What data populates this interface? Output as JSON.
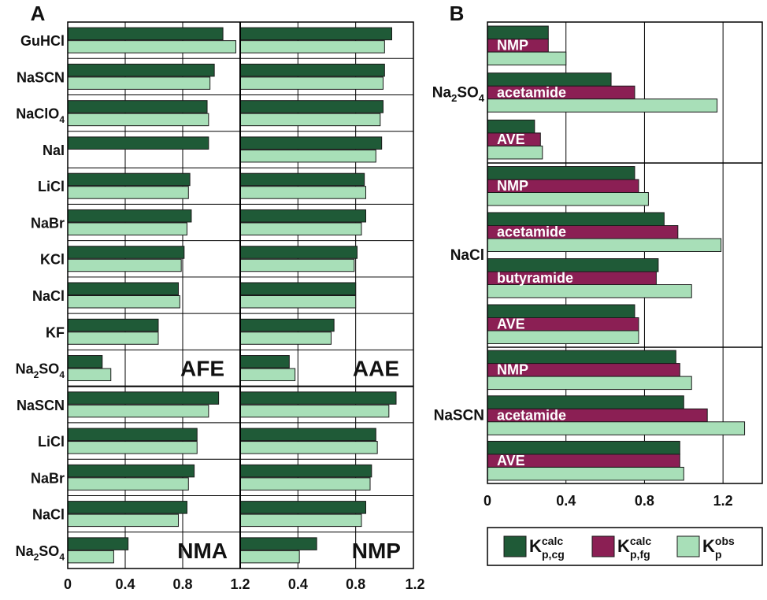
{
  "colors": {
    "calc_cg": "#1f5a37",
    "calc_fg": "#8b1f54",
    "obs": "#a8dfb8",
    "bar_outline": "#1a1a1a",
    "grid": "#000000"
  },
  "panel_labels": {
    "a": "A",
    "b": "B"
  },
  "chart_data": [
    {
      "type": "bar",
      "orientation": "horizontal",
      "panel": "A",
      "title": "A",
      "xlim": [
        0,
        1.2
      ],
      "xticks": [
        "0",
        "0.4",
        "0.8",
        "1.2"
      ],
      "xticks_right": [
        "0.4",
        "0.8",
        "1.2"
      ],
      "series_names": [
        "Kp,cg calc",
        "Kp obs"
      ],
      "upper": {
        "rows": [
          {
            "label": "GuHCl",
            "afe_calc": 1.08,
            "afe_obs": 1.17,
            "aae_calc": 1.05,
            "aae_obs": 1.0
          },
          {
            "label": "NaSCN",
            "afe_calc": 1.02,
            "afe_obs": 0.99,
            "aae_calc": 1.0,
            "aae_obs": 0.99
          },
          {
            "label": "NaClO",
            "sub": "4",
            "afe_calc": 0.97,
            "afe_obs": 0.98,
            "aae_calc": 0.99,
            "aae_obs": 0.97
          },
          {
            "label": "NaI",
            "afe_calc": 0.98,
            "afe_obs": null,
            "aae_calc": 0.98,
            "aae_obs": 0.94
          },
          {
            "label": "LiCl",
            "afe_calc": 0.85,
            "afe_obs": 0.84,
            "aae_calc": 0.86,
            "aae_obs": 0.87
          },
          {
            "label": "NaBr",
            "afe_calc": 0.86,
            "afe_obs": 0.83,
            "aae_calc": 0.87,
            "aae_obs": 0.84
          },
          {
            "label": "KCl",
            "afe_calc": 0.81,
            "afe_obs": 0.79,
            "aae_calc": 0.81,
            "aae_obs": 0.79
          },
          {
            "label": "NaCl",
            "afe_calc": 0.77,
            "afe_obs": 0.78,
            "aae_calc": 0.8,
            "aae_obs": 0.8
          },
          {
            "label": "KF",
            "afe_calc": 0.63,
            "afe_obs": 0.63,
            "aae_calc": 0.65,
            "aae_obs": 0.63
          },
          {
            "label": "Na",
            "sub": "2",
            "suffix": "SO",
            "sub2": "4",
            "afe_calc": 0.24,
            "afe_obs": 0.3,
            "aae_calc": 0.34,
            "aae_obs": 0.38
          }
        ],
        "left_label": "AFE",
        "right_label": "AAE"
      },
      "lower": {
        "rows": [
          {
            "label": "NaSCN",
            "nma_calc": 1.05,
            "nma_obs": 0.98,
            "nmp_calc": 1.08,
            "nmp_obs": 1.03
          },
          {
            "label": "LiCl",
            "nma_calc": 0.9,
            "nma_obs": 0.9,
            "nmp_calc": 0.94,
            "nmp_obs": 0.95
          },
          {
            "label": "NaBr",
            "nma_calc": 0.88,
            "nma_obs": 0.84,
            "nmp_calc": 0.91,
            "nmp_obs": 0.9
          },
          {
            "label": "NaCl",
            "nma_calc": 0.83,
            "nma_obs": 0.77,
            "nmp_calc": 0.87,
            "nmp_obs": 0.84
          },
          {
            "label": "Na",
            "sub": "2",
            "suffix": "SO",
            "sub2": "4",
            "nma_calc": 0.42,
            "nma_obs": 0.32,
            "nmp_calc": 0.53,
            "nmp_obs": 0.41
          }
        ],
        "left_label": "NMA",
        "right_label": "NMP"
      }
    },
    {
      "type": "bar",
      "orientation": "horizontal",
      "panel": "B",
      "title": "B",
      "xlim": [
        0,
        1.4
      ],
      "xticks": [
        "0",
        "0.4",
        "0.8",
        "1.2"
      ],
      "series_names": [
        "Kp,cg calc",
        "Kp,fg calc",
        "Kp obs"
      ],
      "groups": [
        {
          "label": "Na",
          "sub": "2",
          "suffix": "SO",
          "sub2": "4",
          "items": [
            {
              "name": "NMP",
              "cg": 0.31,
              "fg": 0.31,
              "obs": 0.4
            },
            {
              "name": "acetamide",
              "cg": 0.63,
              "fg": 0.75,
              "obs": 1.17
            },
            {
              "name": "AVE",
              "cg": 0.24,
              "fg": 0.27,
              "obs": 0.28
            }
          ]
        },
        {
          "label": "NaCl",
          "items": [
            {
              "name": "NMP",
              "cg": 0.75,
              "fg": 0.77,
              "obs": 0.82
            },
            {
              "name": "acetamide",
              "cg": 0.9,
              "fg": 0.97,
              "obs": 1.19
            },
            {
              "name": "butyramide",
              "cg": 0.87,
              "fg": 0.86,
              "obs": 1.04
            },
            {
              "name": "AVE",
              "cg": 0.75,
              "fg": 0.77,
              "obs": 0.77
            }
          ]
        },
        {
          "label": "NaSCN",
          "items": [
            {
              "name": "NMP",
              "cg": 0.96,
              "fg": 0.98,
              "obs": 1.04
            },
            {
              "name": "acetamide",
              "cg": 1.0,
              "fg": 1.12,
              "obs": 1.31
            },
            {
              "name": "AVE",
              "cg": 0.98,
              "fg": 0.98,
              "obs": 1.0
            }
          ]
        }
      ]
    }
  ],
  "legend": [
    {
      "base": "K",
      "sup": "calc",
      "sub": "p,cg",
      "color_key": "calc_cg"
    },
    {
      "base": "K",
      "sup": "calc",
      "sub": "p,fg",
      "color_key": "calc_fg"
    },
    {
      "base": "K",
      "sup": "obs",
      "sub": "p",
      "color_key": "obs"
    }
  ]
}
